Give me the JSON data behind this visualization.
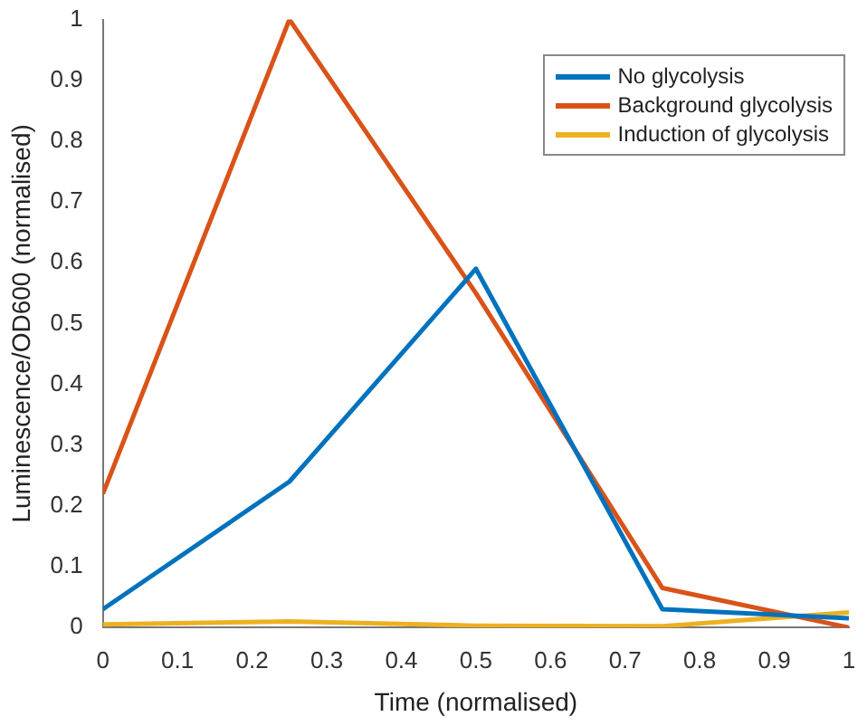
{
  "chart_data": {
    "type": "line",
    "xlabel": "Time (normalised)",
    "ylabel": "Luminescence/OD600 (normalised)",
    "x": [
      0,
      0.25,
      0.5,
      0.75,
      1
    ],
    "series": [
      {
        "name": "No glycolysis",
        "color": "#0072bd",
        "values": [
          0.03,
          0.24,
          0.59,
          0.03,
          0.015
        ]
      },
      {
        "name": "Background glycolysis",
        "color": "#d95319",
        "values": [
          0.22,
          1,
          0.55,
          0.065,
          0
        ]
      },
      {
        "name": "Induction of glycolysis",
        "color": "#edb120",
        "values": [
          0.005,
          0.01,
          0.003,
          0.002,
          0.025
        ]
      }
    ],
    "xlim": [
      0,
      1
    ],
    "ylim": [
      0,
      1
    ],
    "xticks": [
      0,
      0.1,
      0.2,
      0.3,
      0.4,
      0.5,
      0.6,
      0.7,
      0.8,
      0.9,
      1
    ],
    "yticks": [
      0,
      0.1,
      0.2,
      0.3,
      0.4,
      0.5,
      0.6,
      0.7,
      0.8,
      0.9,
      1
    ],
    "grid": false,
    "legend": "top right",
    "marker": "none",
    "line_style": "solid"
  }
}
